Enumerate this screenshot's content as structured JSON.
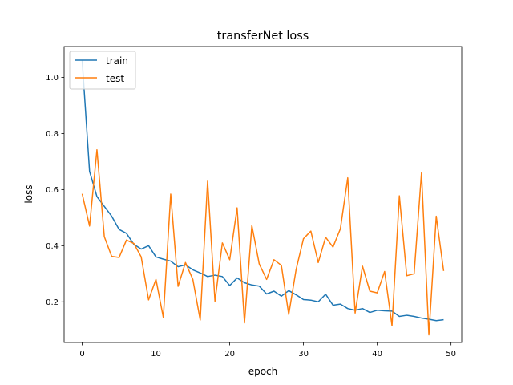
{
  "chart_data": {
    "type": "line",
    "title": "transferNet loss",
    "xlabel": "epoch",
    "ylabel": "loss",
    "xlim": [
      -2.45,
      51.45
    ],
    "ylim": [
      0.055,
      1.11
    ],
    "xticks": [
      0,
      10,
      20,
      30,
      40,
      50
    ],
    "yticks": [
      0.2,
      0.4,
      0.6,
      0.8,
      1.0
    ],
    "xtick_labels": [
      "0",
      "10",
      "20",
      "30",
      "40",
      "50"
    ],
    "ytick_labels": [
      "0.2",
      "0.4",
      "0.6",
      "0.8",
      "1.0"
    ],
    "grid": false,
    "legend_position": "top-left",
    "x": [
      0,
      1,
      2,
      3,
      4,
      5,
      6,
      7,
      8,
      9,
      10,
      11,
      12,
      13,
      14,
      15,
      16,
      17,
      18,
      19,
      20,
      21,
      22,
      23,
      24,
      25,
      26,
      27,
      28,
      29,
      30,
      31,
      32,
      33,
      34,
      35,
      36,
      37,
      38,
      39,
      40,
      41,
      42,
      43,
      44,
      45,
      46,
      47,
      48,
      49
    ],
    "series": [
      {
        "name": "train",
        "color": "#1f77b4",
        "values": [
          1.06,
          0.665,
          0.575,
          0.54,
          0.505,
          0.458,
          0.444,
          0.405,
          0.388,
          0.4,
          0.36,
          0.352,
          0.345,
          0.325,
          0.332,
          0.314,
          0.303,
          0.29,
          0.295,
          0.29,
          0.258,
          0.285,
          0.268,
          0.26,
          0.256,
          0.228,
          0.238,
          0.22,
          0.24,
          0.225,
          0.208,
          0.206,
          0.2,
          0.227,
          0.188,
          0.192,
          0.176,
          0.17,
          0.176,
          0.162,
          0.17,
          0.168,
          0.167,
          0.148,
          0.152,
          0.148,
          0.142,
          0.138,
          0.133,
          0.136
        ]
      },
      {
        "name": "test",
        "color": "#ff7f0e",
        "values": [
          0.585,
          0.47,
          0.742,
          0.432,
          0.362,
          0.358,
          0.42,
          0.408,
          0.36,
          0.207,
          0.28,
          0.144,
          0.584,
          0.255,
          0.34,
          0.28,
          0.135,
          0.63,
          0.202,
          0.41,
          0.35,
          0.535,
          0.125,
          0.472,
          0.335,
          0.28,
          0.35,
          0.33,
          0.155,
          0.315,
          0.425,
          0.452,
          0.34,
          0.43,
          0.395,
          0.46,
          0.642,
          0.16,
          0.327,
          0.238,
          0.232,
          0.308,
          0.115,
          0.578,
          0.293,
          0.3,
          0.66,
          0.082,
          0.505,
          0.31
        ]
      }
    ]
  }
}
